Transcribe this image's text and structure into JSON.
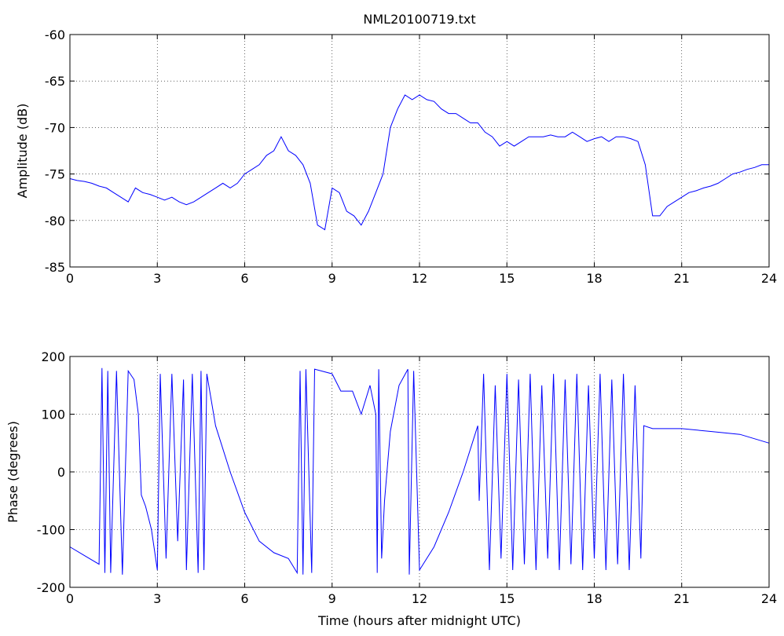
{
  "chart_data": [
    {
      "type": "line",
      "title": "NML20100719.txt",
      "y_label": "Amplitude (dB)",
      "grid": true,
      "xlim": [
        0,
        24
      ],
      "xticks": [
        0,
        3,
        6,
        9,
        12,
        15,
        18,
        21,
        24
      ],
      "ylim": [
        -85,
        -60
      ],
      "yticks": [
        -85,
        -80,
        -75,
        -70,
        -65,
        -60
      ],
      "series": [
        {
          "name": "Amplitude",
          "color": "#0000ff",
          "x": [
            0,
            0.25,
            0.5,
            0.75,
            1,
            1.25,
            1.5,
            1.75,
            2,
            2.25,
            2.5,
            2.75,
            3,
            3.25,
            3.5,
            3.75,
            4,
            4.25,
            4.5,
            4.75,
            5,
            5.25,
            5.5,
            5.75,
            6,
            6.25,
            6.5,
            6.75,
            7,
            7.25,
            7.5,
            7.75,
            8,
            8.25,
            8.5,
            8.75,
            9,
            9.25,
            9.5,
            9.75,
            10,
            10.25,
            10.5,
            10.75,
            11,
            11.25,
            11.5,
            11.75,
            12,
            12.25,
            12.5,
            12.75,
            13,
            13.25,
            13.5,
            13.75,
            14,
            14.25,
            14.5,
            14.75,
            15,
            15.25,
            15.5,
            15.75,
            16,
            16.25,
            16.5,
            16.75,
            17,
            17.25,
            17.5,
            17.75,
            18,
            18.25,
            18.5,
            18.75,
            19,
            19.25,
            19.5,
            19.75,
            20,
            20.25,
            20.5,
            20.75,
            21,
            21.25,
            21.5,
            21.75,
            22,
            22.25,
            22.5,
            22.75,
            23,
            23.25,
            23.5,
            23.75,
            24
          ],
          "values": [
            -75.5,
            -75.7,
            -75.8,
            -76,
            -76.3,
            -76.5,
            -77,
            -77.5,
            -78,
            -76.5,
            -77,
            -77.2,
            -77.5,
            -77.8,
            -77.5,
            -78,
            -78.3,
            -78,
            -77.5,
            -77,
            -76.5,
            -76,
            -76.5,
            -76,
            -75,
            -74.5,
            -74,
            -73,
            -72.5,
            -71,
            -72.5,
            -73,
            -74,
            -76,
            -80.5,
            -81,
            -76.5,
            -77,
            -79,
            -79.5,
            -80.5,
            -79,
            -77,
            -75,
            -70,
            -68,
            -66.5,
            -67,
            -66.5,
            -67,
            -67.2,
            -68,
            -68.5,
            -68.5,
            -69,
            -69.5,
            -69.5,
            -70.5,
            -71,
            -72,
            -71.5,
            -72,
            -71.5,
            -71,
            -71,
            -71,
            -70.8,
            -71,
            -71,
            -70.5,
            -71,
            -71.5,
            -71.2,
            -71,
            -71.5,
            -71,
            -71,
            -71.2,
            -71.5,
            -74,
            -79.5,
            -79.5,
            -78.5,
            -78,
            -77.5,
            -77,
            -76.8,
            -76.5,
            -76.3,
            -76,
            -75.5,
            -75,
            -74.8,
            -74.5,
            -74.3,
            -74,
            -74
          ]
        }
      ]
    },
    {
      "type": "line",
      "x_label": "Time (hours after midnight UTC)",
      "y_label": "Phase (degrees)",
      "grid": true,
      "xlim": [
        0,
        24
      ],
      "xticks": [
        0,
        3,
        6,
        9,
        12,
        15,
        18,
        21,
        24
      ],
      "ylim": [
        -200,
        200
      ],
      "yticks": [
        -200,
        -100,
        0,
        100,
        200
      ],
      "series": [
        {
          "name": "Phase",
          "color": "#0000ff",
          "x": [
            0,
            0.5,
            1,
            1.1,
            1.2,
            1.3,
            1.4,
            1.6,
            1.8,
            2,
            2.2,
            2.35,
            2.45,
            2.6,
            2.8,
            3,
            3.1,
            3.3,
            3.5,
            3.7,
            3.9,
            4,
            4.2,
            4.4,
            4.5,
            4.6,
            4.7,
            5,
            5.5,
            6,
            6.5,
            7,
            7.5,
            7.8,
            7.9,
            8,
            8.1,
            8.3,
            8.4,
            9,
            9.3,
            9.7,
            10,
            10.3,
            10.5,
            10.55,
            10.6,
            10.7,
            10.8,
            11,
            11.3,
            11.6,
            11.65,
            11.8,
            12,
            12.5,
            13,
            13.5,
            14,
            14.05,
            14.2,
            14.4,
            14.6,
            14.8,
            15,
            15.2,
            15.4,
            15.6,
            15.8,
            16,
            16.2,
            16.4,
            16.6,
            16.8,
            17,
            17.2,
            17.4,
            17.6,
            17.8,
            18,
            18.2,
            18.4,
            18.6,
            18.8,
            19,
            19.2,
            19.4,
            19.6,
            19.7,
            20,
            21,
            22,
            23,
            24
          ],
          "values": [
            -130,
            -145,
            -160,
            180,
            -175,
            175,
            -175,
            175,
            -178,
            175,
            160,
            100,
            -40,
            -60,
            -100,
            -170,
            170,
            -150,
            170,
            -120,
            160,
            -170,
            170,
            -175,
            175,
            -170,
            170,
            80,
            0,
            -70,
            -120,
            -140,
            -150,
            -175,
            175,
            -178,
            178,
            -175,
            178,
            170,
            140,
            140,
            100,
            150,
            100,
            -175,
            178,
            -150,
            -50,
            70,
            150,
            178,
            -178,
            175,
            -170,
            -130,
            -70,
            0,
            80,
            -50,
            170,
            -170,
            150,
            -150,
            170,
            -170,
            160,
            -160,
            170,
            -170,
            150,
            -150,
            170,
            -170,
            160,
            -160,
            170,
            -170,
            150,
            -150,
            170,
            -170,
            160,
            -160,
            170,
            -170,
            150,
            -150,
            80,
            75,
            75,
            70,
            65,
            50
          ]
        }
      ]
    }
  ]
}
